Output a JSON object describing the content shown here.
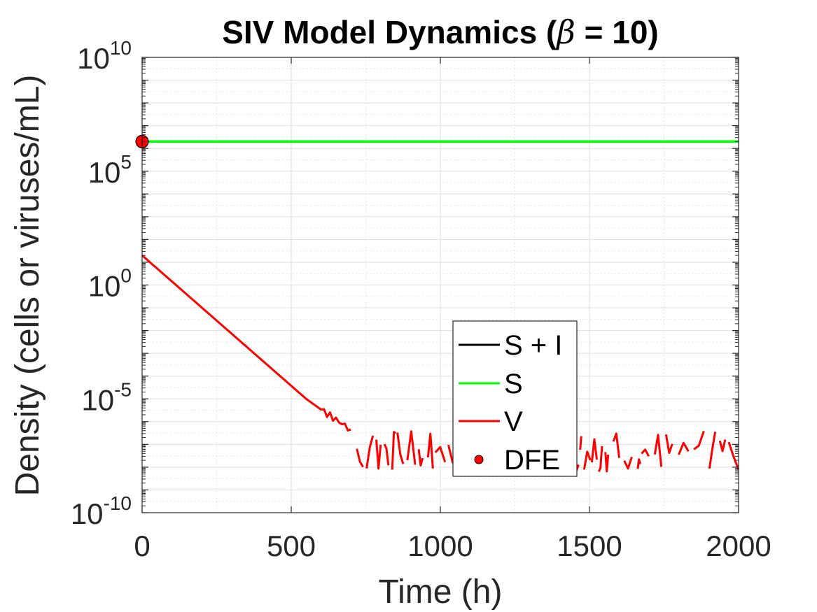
{
  "chart_data": {
    "type": "line",
    "title_pre": "SIV Model Dynamics (",
    "title_beta": "β",
    "title_post": " = 10)",
    "xlabel": "Time (h)",
    "ylabel": "Density (cells or viruses/mL)",
    "x_scale": "linear",
    "y_scale": "log",
    "xlim": [
      0,
      2000
    ],
    "ylim_exponent": [
      -10,
      10
    ],
    "x_ticks": [
      "0",
      "500",
      "1000",
      "1500",
      "2000"
    ],
    "y_ticks": [
      {
        "base": "10",
        "exp": "-10",
        "value_exponent": -10
      },
      {
        "base": "10",
        "exp": "-5",
        "value_exponent": -5
      },
      {
        "base": "10",
        "exp": "0",
        "value_exponent": 0
      },
      {
        "base": "10",
        "exp": "5",
        "value_exponent": 5
      },
      {
        "base": "10",
        "exp": "10",
        "value_exponent": 10
      }
    ],
    "grid": true,
    "legend_position": "lower-center-right",
    "series": [
      {
        "name": "S + I",
        "color": "#000000",
        "points": [
          [
            0,
            2000000
          ],
          [
            2000,
            2000000
          ]
        ]
      },
      {
        "name": "S",
        "color": "#00ff00",
        "points": [
          [
            0,
            2000000
          ],
          [
            2000,
            2000000
          ]
        ]
      },
      {
        "name": "V",
        "color": "#ff0000",
        "decay": [
          [
            0,
            20
          ],
          [
            550,
            1e-05
          ],
          [
            620,
            2.2e-06
          ],
          [
            700,
            4.5e-07
          ]
        ],
        "noise_range_log10": [
          -8.2,
          -6.4
        ],
        "noise_start": 720,
        "noise_end": 2000
      },
      {
        "name": "DFE",
        "color": "#ff0000",
        "marker": "circle",
        "points": [
          [
            0,
            2000000
          ]
        ]
      }
    ]
  }
}
